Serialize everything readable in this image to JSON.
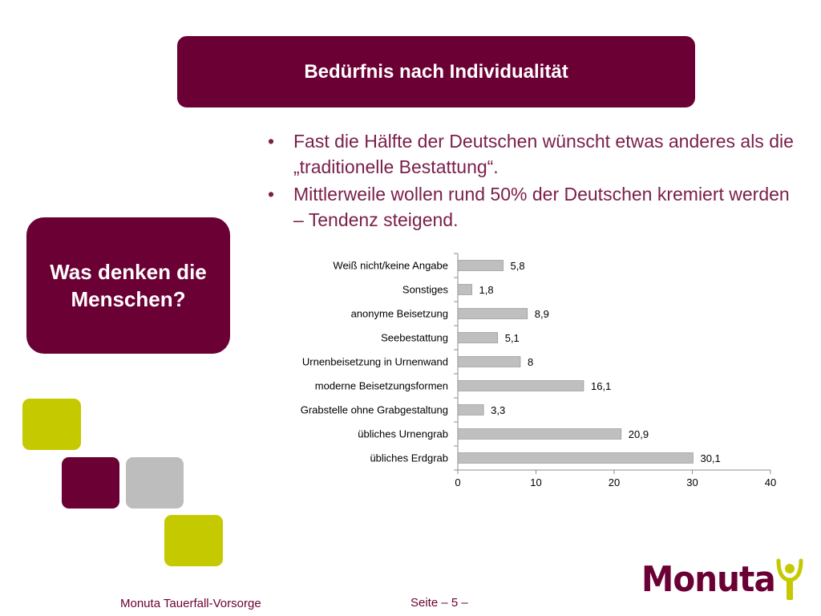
{
  "header": {
    "title": "Bedürfnis nach Individualität"
  },
  "bullets": [
    "Fast die Hälfte der Deutschen wünscht etwas anderes als die „traditionelle Bestattung“.",
    "Mittlerweile wollen rund 50% der Deutschen kremiert werden – Tendenz steigend."
  ],
  "bullet_symbol": "•",
  "question": "Was denken die\nMenschen?",
  "footer": {
    "left": "Monuta Tauerfall-Vorsorge",
    "page": "Seite – 5 –"
  },
  "logo": {
    "text": "Monuta",
    "icon": "monuta-person-icon"
  },
  "colors": {
    "brand": "#6b0034",
    "accent_green": "#c5c900",
    "accent_gray": "#bdbdbd",
    "bar_fill": "#bfbfbf",
    "bar_stroke": "#8c8c8c"
  },
  "chart_data": {
    "type": "bar",
    "orientation": "horizontal",
    "categories": [
      "Weiß nicht/keine Angabe",
      "Sonstiges",
      "anonyme Beisetzung",
      "Seebestattung",
      "Urnenbeisetzung in Urnenwand",
      "moderne Beisetzungsformen",
      "Grabstelle ohne Grabgestaltung",
      "übliches Urnengrab",
      "übliches Erdgrab"
    ],
    "values": [
      5.8,
      1.8,
      8.9,
      5.1,
      8,
      16.1,
      3.3,
      20.9,
      30.1
    ],
    "value_labels": [
      "5,8",
      "1,8",
      "8,9",
      "5,1",
      "8",
      "16,1",
      "3,3",
      "20,9",
      "30,1"
    ],
    "xlim": [
      0,
      40
    ],
    "xticks": [
      0,
      10,
      20,
      30,
      40
    ],
    "grid": false,
    "legend": false
  }
}
